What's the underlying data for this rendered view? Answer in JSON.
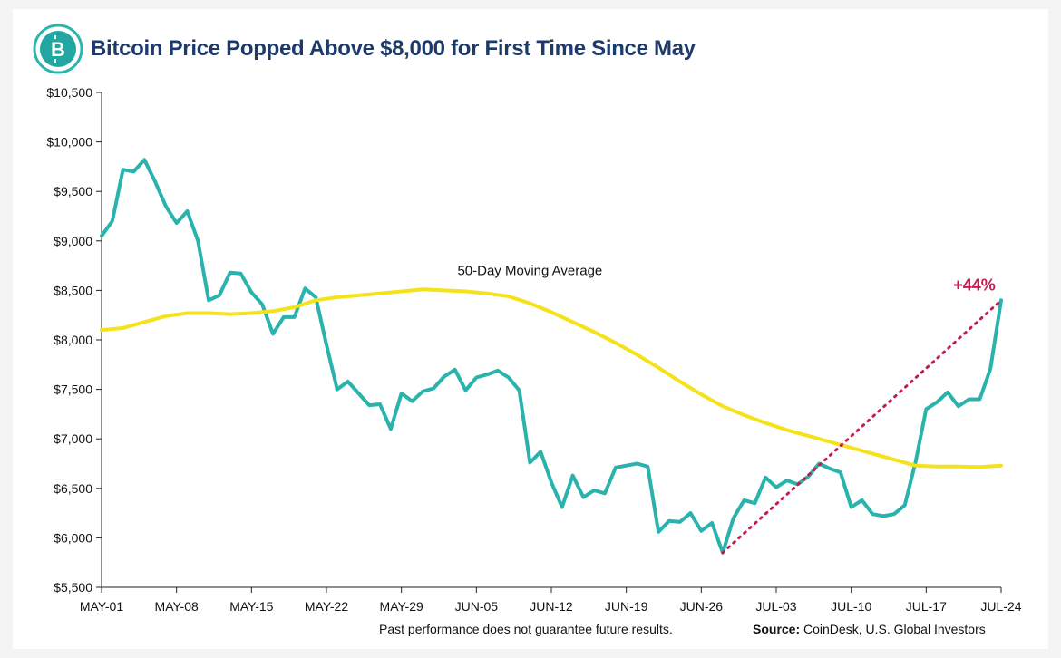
{
  "header": {
    "title": "Bitcoin Price Popped Above $8,000 for First Time Since May",
    "logo_icon": "bitcoin-icon",
    "logo_glyph": "B",
    "colors": {
      "title": "#1d3a6b",
      "logo_ring": "#2bb5b0",
      "logo_fill": "#22a6a1"
    }
  },
  "footer": {
    "disclaimer": "Past performance does not guarantee future results.",
    "source_label": "Source:",
    "source_text": " CoinDesk, U.S. Global Investors"
  },
  "chart_data": {
    "type": "line",
    "title": "Bitcoin Price Popped Above $8,000 for First Time Since May",
    "xlabel": "",
    "ylabel": "",
    "x_tick_labels": [
      "MAY-01",
      "MAY-08",
      "MAY-15",
      "MAY-22",
      "MAY-29",
      "JUN-05",
      "JUN-12",
      "JUN-19",
      "JUN-26",
      "JUL-03",
      "JUL-10",
      "JUL-17",
      "JUL-24"
    ],
    "y_tick_labels": [
      "$5,500",
      "$6,000",
      "$6,500",
      "$7,000",
      "$7,500",
      "$8,000",
      "$8,500",
      "$9,000",
      "$9,500",
      "$10,000",
      "$10,500"
    ],
    "ylim": [
      5500,
      10500
    ],
    "grid": false,
    "series": [
      {
        "color": "#2ab3ad",
        "x": [
          0,
          1,
          2,
          3,
          4,
          5,
          6,
          7,
          8,
          9,
          10,
          11,
          12,
          13,
          14,
          15,
          16,
          17,
          18,
          19,
          20,
          21,
          22,
          23,
          24,
          25,
          26,
          27,
          28,
          29,
          30,
          31,
          32,
          33,
          34,
          35,
          36,
          37,
          38,
          39,
          40,
          41,
          42,
          43,
          44,
          45,
          46,
          47,
          48,
          49,
          50,
          51,
          52,
          53,
          54,
          55,
          56,
          57,
          58,
          59,
          60,
          61,
          62,
          63,
          64,
          65,
          66,
          67,
          68,
          69,
          70,
          71,
          72,
          73,
          74,
          75,
          76,
          77,
          78,
          79,
          80,
          81,
          82,
          83,
          84
        ],
        "values": [
          9050,
          9200,
          9720,
          9700,
          9820,
          9600,
          9350,
          9180,
          9300,
          9000,
          8400,
          8450,
          8680,
          8670,
          8480,
          8360,
          8060,
          8230,
          8230,
          8520,
          8430,
          7950,
          7500,
          7580,
          7460,
          7340,
          7350,
          7100,
          7460,
          7380,
          7480,
          7510,
          7630,
          7700,
          7490,
          7620,
          7650,
          7690,
          7620,
          7490,
          6760,
          6870,
          6560,
          6310,
          6630,
          6410,
          6480,
          6450,
          6710,
          6730,
          6750,
          6720,
          6060,
          6170,
          6160,
          6250,
          6070,
          6150,
          5850,
          6200,
          6380,
          6350,
          6610,
          6510,
          6580,
          6540,
          6620,
          6750,
          6700,
          6660,
          6310,
          6380,
          6240,
          6220,
          6240,
          6330,
          6760,
          7300,
          7370,
          7470,
          7330,
          7400,
          7400,
          7710,
          8400
        ]
      },
      {
        "name": "50-Day Moving Average",
        "color": "#f6e21a",
        "x": [
          0,
          2,
          4,
          6,
          8,
          10,
          12,
          14,
          16,
          18,
          20,
          22,
          24,
          26,
          28,
          30,
          32,
          34,
          36,
          38,
          40,
          42,
          44,
          46,
          48,
          50,
          52,
          54,
          56,
          58,
          60,
          62,
          64,
          66,
          68,
          70,
          72,
          74,
          76,
          78,
          80,
          82,
          84
        ],
        "values": [
          8100,
          8120,
          8180,
          8240,
          8270,
          8270,
          8260,
          8270,
          8290,
          8330,
          8400,
          8430,
          8450,
          8470,
          8490,
          8510,
          8500,
          8490,
          8470,
          8440,
          8370,
          8280,
          8180,
          8080,
          7970,
          7850,
          7720,
          7580,
          7450,
          7330,
          7240,
          7160,
          7090,
          7030,
          6970,
          6910,
          6850,
          6790,
          6730,
          6720,
          6720,
          6715,
          6730
        ]
      }
    ],
    "annotations": {
      "ma_label": "50-Day Moving Average",
      "gain_label": "+44%",
      "gain_from": {
        "x": 58,
        "y": 5850
      },
      "gain_to": {
        "x": 84,
        "y": 8400
      },
      "gain_color": "#c21b4e"
    },
    "x_max": 84
  }
}
